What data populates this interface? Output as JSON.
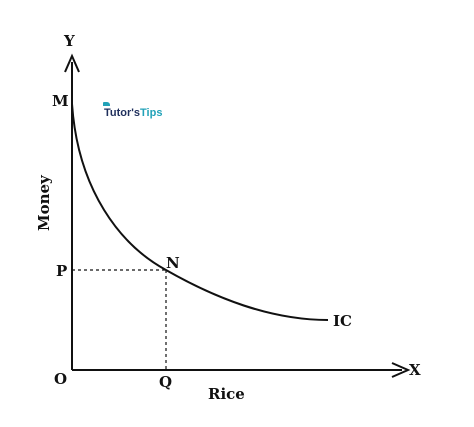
{
  "labels": {
    "y_axis": "Y",
    "x_axis": "X",
    "origin": "O",
    "point_m": "M",
    "point_p": "P",
    "point_n": "N",
    "point_q": "Q",
    "curve": "IC",
    "y_title": "Money",
    "x_title": "Rice"
  },
  "watermark": {
    "part1": "Tutor's",
    "part2": "Tips"
  },
  "colors": {
    "ink": "#111111",
    "watermark_dark": "#1f2f5c",
    "watermark_teal": "#22a2b8"
  }
}
